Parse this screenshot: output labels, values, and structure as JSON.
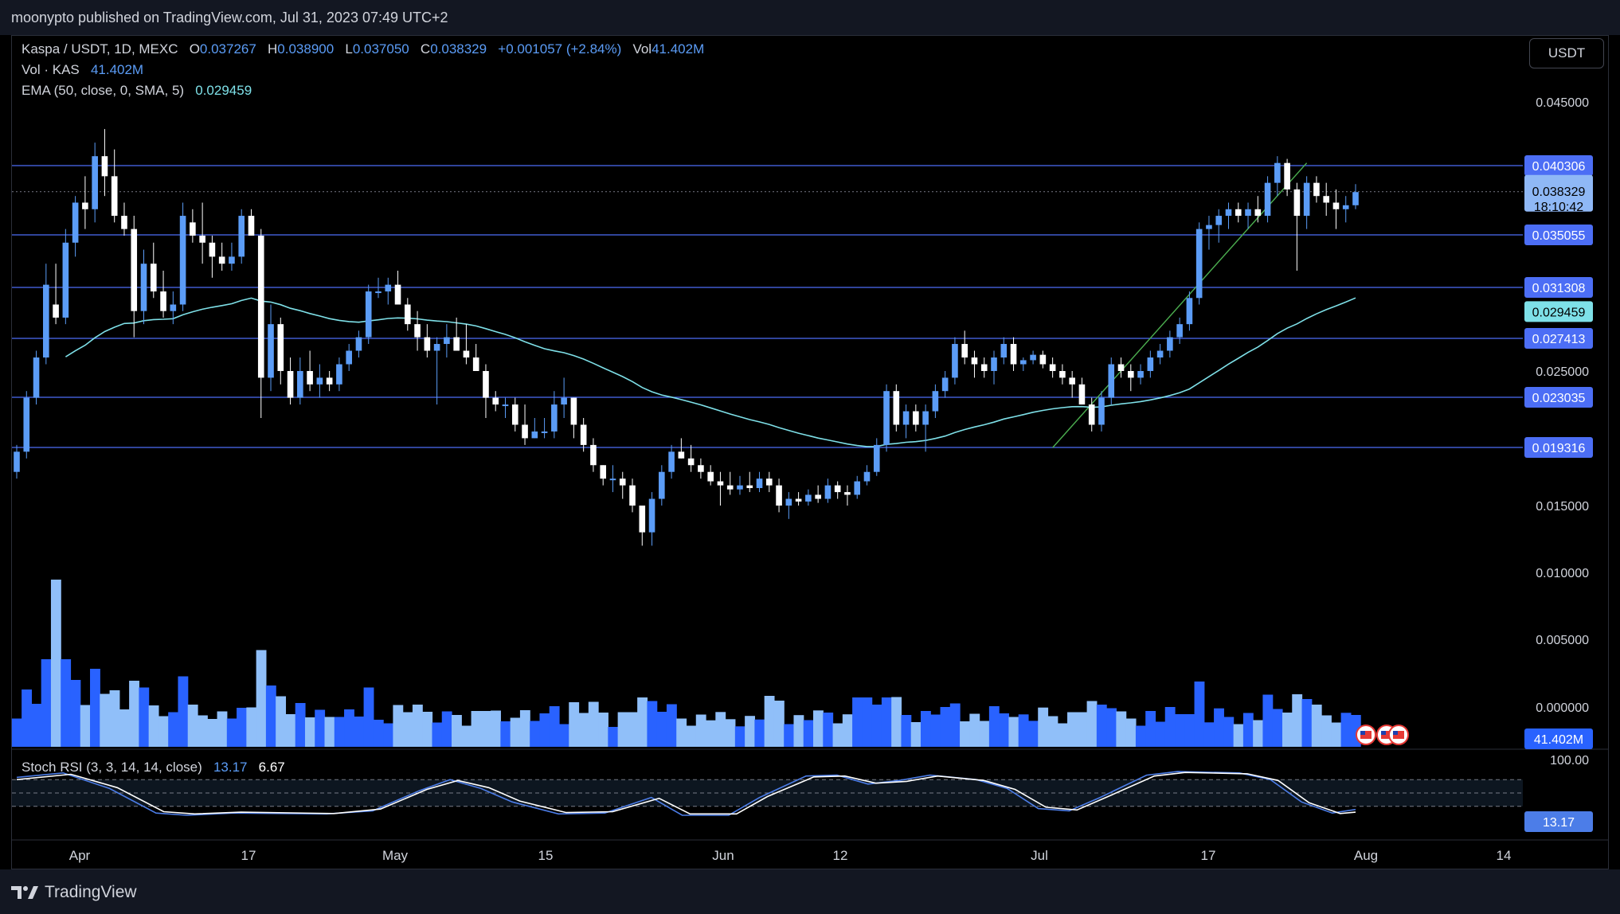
{
  "header": {
    "published": "moonypto published on TradingView.com, Jul 31, 2023 07:49 UTC+2"
  },
  "legend": {
    "symbol": "Kaspa / USDT, 1D, MEXC",
    "open_label": "O",
    "open": "0.037267",
    "high_label": "H",
    "high": "0.038900",
    "low_label": "L",
    "low": "0.037050",
    "close_label": "C",
    "close": "0.038329",
    "change": "+0.001057 (+2.84%)",
    "vol_label": "Vol",
    "vol": "41.402M",
    "volume_title": "Vol · KAS",
    "volume_value": "41.402M",
    "ema_title": "EMA (50, close, 0, SMA, 5)",
    "ema_value": "0.029459",
    "stoch_title": "Stoch RSI (3, 3, 14, 14, close)",
    "stoch_k": "13.17",
    "stoch_d": "6.67"
  },
  "currency_button": "USDT",
  "footer": {
    "brand": "TradingView"
  },
  "colors": {
    "up": "#5b9cf6",
    "down": "#ffffff",
    "ema": "#7ee0e8",
    "hline": "#4c6ef5",
    "volume_dark": "#2962ff",
    "volume_light": "#90bff9",
    "stoch_k": "#4c7de8",
    "stoch_d": "#ffffff",
    "trendline": "#4caf50"
  },
  "chart_data": {
    "type": "candlestick",
    "y_axis_ticks": [
      "0.045000",
      "0.025000",
      "0.015000",
      "0.010000",
      "0.005000",
      "0.000000"
    ],
    "x_axis_ticks": [
      "Apr",
      "17",
      "May",
      "15",
      "Jun",
      "12",
      "Jul",
      "17",
      "Aug",
      "14"
    ],
    "price_levels": [
      "0.040306",
      "0.035055",
      "0.031308",
      "0.027413",
      "0.023035",
      "0.019316"
    ],
    "last_price": "0.038329",
    "countdown": "18:10:42",
    "ema_last": "0.029459",
    "volume_last": "41.402M",
    "stoch_axis": [
      "100.00"
    ],
    "stoch_last": "13.17",
    "candles": [
      [
        0.0175,
        0.0195,
        0.017,
        0.019
      ],
      [
        0.019,
        0.0235,
        0.0185,
        0.023
      ],
      [
        0.023,
        0.0265,
        0.0225,
        0.026
      ],
      [
        0.026,
        0.033,
        0.0255,
        0.0315
      ],
      [
        0.03,
        0.033,
        0.0285,
        0.029
      ],
      [
        0.029,
        0.0355,
        0.0285,
        0.0345
      ],
      [
        0.0345,
        0.038,
        0.0335,
        0.0375
      ],
      [
        0.0375,
        0.0395,
        0.0355,
        0.037
      ],
      [
        0.037,
        0.042,
        0.036,
        0.041
      ],
      [
        0.041,
        0.043,
        0.038,
        0.0395
      ],
      [
        0.0395,
        0.0415,
        0.036,
        0.0365
      ],
      [
        0.0365,
        0.0375,
        0.035,
        0.0355
      ],
      [
        0.0355,
        0.0365,
        0.0275,
        0.0295
      ],
      [
        0.0295,
        0.034,
        0.0285,
        0.033
      ],
      [
        0.033,
        0.0345,
        0.0305,
        0.031
      ],
      [
        0.031,
        0.0325,
        0.029,
        0.0295
      ],
      [
        0.0295,
        0.031,
        0.0285,
        0.03
      ],
      [
        0.03,
        0.0375,
        0.0295,
        0.0365
      ],
      [
        0.036,
        0.037,
        0.0345,
        0.035
      ],
      [
        0.035,
        0.0375,
        0.033,
        0.0345
      ],
      [
        0.0345,
        0.035,
        0.032,
        0.0335
      ],
      [
        0.0335,
        0.0345,
        0.0325,
        0.033
      ],
      [
        0.033,
        0.0345,
        0.0325,
        0.0335
      ],
      [
        0.0335,
        0.037,
        0.033,
        0.0365
      ],
      [
        0.0365,
        0.037,
        0.035,
        0.035
      ],
      [
        0.035,
        0.0355,
        0.0215,
        0.0245
      ],
      [
        0.0245,
        0.03,
        0.0235,
        0.0285
      ],
      [
        0.0285,
        0.029,
        0.024,
        0.025
      ],
      [
        0.025,
        0.026,
        0.0225,
        0.023
      ],
      [
        0.023,
        0.026,
        0.0225,
        0.025
      ],
      [
        0.025,
        0.0265,
        0.0235,
        0.024
      ],
      [
        0.024,
        0.0255,
        0.023,
        0.0245
      ],
      [
        0.0245,
        0.025,
        0.0235,
        0.024
      ],
      [
        0.024,
        0.026,
        0.0235,
        0.0255
      ],
      [
        0.0255,
        0.027,
        0.025,
        0.0265
      ],
      [
        0.0265,
        0.028,
        0.026,
        0.0275
      ],
      [
        0.0275,
        0.0315,
        0.027,
        0.031
      ],
      [
        0.031,
        0.032,
        0.0305,
        0.031
      ],
      [
        0.031,
        0.032,
        0.03,
        0.0315
      ],
      [
        0.0315,
        0.0325,
        0.03,
        0.03
      ],
      [
        0.03,
        0.0305,
        0.028,
        0.0285
      ],
      [
        0.0285,
        0.0295,
        0.0265,
        0.0275
      ],
      [
        0.0275,
        0.0285,
        0.026,
        0.0265
      ],
      [
        0.0265,
        0.0275,
        0.0225,
        0.027
      ],
      [
        0.027,
        0.0285,
        0.026,
        0.0275
      ],
      [
        0.0275,
        0.029,
        0.0265,
        0.0265
      ],
      [
        0.0265,
        0.0285,
        0.0255,
        0.026
      ],
      [
        0.026,
        0.027,
        0.025,
        0.025
      ],
      [
        0.025,
        0.0255,
        0.0215,
        0.023
      ],
      [
        0.023,
        0.0235,
        0.022,
        0.0225
      ],
      [
        0.0225,
        0.023,
        0.0215,
        0.0225
      ],
      [
        0.0225,
        0.023,
        0.0205,
        0.021
      ],
      [
        0.021,
        0.0225,
        0.0195,
        0.02
      ],
      [
        0.02,
        0.0215,
        0.02,
        0.0205
      ],
      [
        0.0205,
        0.0215,
        0.02,
        0.0205
      ],
      [
        0.0205,
        0.0235,
        0.02,
        0.0225
      ],
      [
        0.0225,
        0.0245,
        0.0215,
        0.023
      ],
      [
        0.023,
        0.023,
        0.02,
        0.021
      ],
      [
        0.021,
        0.0215,
        0.019,
        0.0195
      ],
      [
        0.0195,
        0.02,
        0.0175,
        0.018
      ],
      [
        0.018,
        0.018,
        0.0165,
        0.017
      ],
      [
        0.017,
        0.018,
        0.016,
        0.017
      ],
      [
        0.017,
        0.0175,
        0.0155,
        0.0165
      ],
      [
        0.0165,
        0.017,
        0.0145,
        0.015
      ],
      [
        0.015,
        0.015,
        0.012,
        0.013
      ],
      [
        0.013,
        0.016,
        0.012,
        0.0155
      ],
      [
        0.0155,
        0.018,
        0.015,
        0.0175
      ],
      [
        0.0175,
        0.0195,
        0.017,
        0.019
      ],
      [
        0.019,
        0.02,
        0.0185,
        0.0185
      ],
      [
        0.0185,
        0.0195,
        0.0175,
        0.018
      ],
      [
        0.018,
        0.0185,
        0.017,
        0.0175
      ],
      [
        0.0175,
        0.018,
        0.0165,
        0.0168
      ],
      [
        0.0168,
        0.0175,
        0.015,
        0.0165
      ],
      [
        0.0165,
        0.0175,
        0.0158,
        0.0162
      ],
      [
        0.0162,
        0.0172,
        0.0158,
        0.0165
      ],
      [
        0.0165,
        0.0175,
        0.016,
        0.0163
      ],
      [
        0.0163,
        0.0175,
        0.016,
        0.017
      ],
      [
        0.017,
        0.0175,
        0.016,
        0.0165
      ],
      [
        0.0165,
        0.017,
        0.0145,
        0.015
      ],
      [
        0.015,
        0.016,
        0.014,
        0.0155
      ],
      [
        0.0155,
        0.016,
        0.015,
        0.0153
      ],
      [
        0.0153,
        0.0162,
        0.015,
        0.0158
      ],
      [
        0.0158,
        0.0165,
        0.0152,
        0.0155
      ],
      [
        0.0155,
        0.017,
        0.0152,
        0.0165
      ],
      [
        0.0165,
        0.0168,
        0.0155,
        0.016
      ],
      [
        0.016,
        0.0165,
        0.015,
        0.0158
      ],
      [
        0.0158,
        0.0172,
        0.0155,
        0.0168
      ],
      [
        0.0168,
        0.018,
        0.0165,
        0.0175
      ],
      [
        0.0175,
        0.02,
        0.0172,
        0.0195
      ],
      [
        0.0195,
        0.024,
        0.019,
        0.0235
      ],
      [
        0.0235,
        0.024,
        0.0205,
        0.021
      ],
      [
        0.021,
        0.0225,
        0.02,
        0.022
      ],
      [
        0.022,
        0.0225,
        0.0205,
        0.021
      ],
      [
        0.021,
        0.0225,
        0.019,
        0.022
      ],
      [
        0.022,
        0.024,
        0.0215,
        0.0235
      ],
      [
        0.0235,
        0.025,
        0.023,
        0.0245
      ],
      [
        0.0245,
        0.0275,
        0.024,
        0.027
      ],
      [
        0.027,
        0.028,
        0.0255,
        0.026
      ],
      [
        0.026,
        0.0265,
        0.0245,
        0.0255
      ],
      [
        0.0255,
        0.026,
        0.0245,
        0.025
      ],
      [
        0.025,
        0.0265,
        0.024,
        0.026
      ],
      [
        0.026,
        0.0275,
        0.0255,
        0.027
      ],
      [
        0.027,
        0.0275,
        0.025,
        0.0255
      ],
      [
        0.0255,
        0.026,
        0.025,
        0.0258
      ],
      [
        0.0258,
        0.0265,
        0.0255,
        0.0262
      ],
      [
        0.0262,
        0.0265,
        0.0252,
        0.0255
      ],
      [
        0.0255,
        0.026,
        0.0245,
        0.025
      ],
      [
        0.025,
        0.0255,
        0.024,
        0.0245
      ],
      [
        0.0245,
        0.025,
        0.023,
        0.024
      ],
      [
        0.024,
        0.0245,
        0.0225,
        0.0225
      ],
      [
        0.0225,
        0.023,
        0.0205,
        0.021
      ],
      [
        0.021,
        0.0235,
        0.0205,
        0.023
      ],
      [
        0.023,
        0.026,
        0.0225,
        0.0255
      ],
      [
        0.0255,
        0.026,
        0.0245,
        0.025
      ],
      [
        0.025,
        0.0255,
        0.0235,
        0.0245
      ],
      [
        0.0245,
        0.0255,
        0.024,
        0.025
      ],
      [
        0.025,
        0.0265,
        0.0245,
        0.026
      ],
      [
        0.026,
        0.027,
        0.0255,
        0.0265
      ],
      [
        0.0265,
        0.028,
        0.026,
        0.0275
      ],
      [
        0.0275,
        0.029,
        0.027,
        0.0285
      ],
      [
        0.0285,
        0.031,
        0.028,
        0.0305
      ],
      [
        0.0305,
        0.036,
        0.03,
        0.0355
      ],
      [
        0.0355,
        0.0365,
        0.034,
        0.0358
      ],
      [
        0.0358,
        0.037,
        0.0345,
        0.0365
      ],
      [
        0.0365,
        0.0375,
        0.0355,
        0.037
      ],
      [
        0.037,
        0.0375,
        0.036,
        0.0365
      ],
      [
        0.0365,
        0.0375,
        0.0355,
        0.037
      ],
      [
        0.037,
        0.038,
        0.036,
        0.0365
      ],
      [
        0.0365,
        0.0395,
        0.036,
        0.039
      ],
      [
        0.039,
        0.041,
        0.038,
        0.0405
      ],
      [
        0.0405,
        0.0408,
        0.038,
        0.0385
      ],
      [
        0.0385,
        0.039,
        0.0325,
        0.0365
      ],
      [
        0.0365,
        0.0395,
        0.0355,
        0.039
      ],
      [
        0.039,
        0.0395,
        0.0375,
        0.038
      ],
      [
        0.038,
        0.039,
        0.0365,
        0.0375
      ],
      [
        0.0375,
        0.0385,
        0.0355,
        0.037
      ],
      [
        0.037,
        0.038,
        0.036,
        0.0373
      ],
      [
        0.0373,
        0.0389,
        0.037,
        0.0383
      ]
    ]
  }
}
